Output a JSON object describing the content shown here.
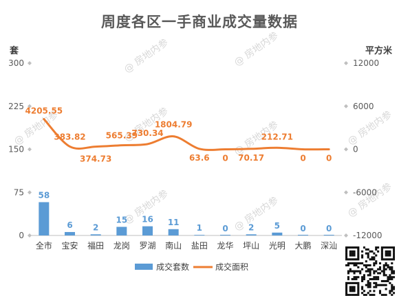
{
  "chart_data": {
    "type": "bar+line",
    "title": "周度各区一手商业成交量数据",
    "left_axis_unit": "套",
    "right_axis_unit": "平方米",
    "categories": [
      "全市",
      "宝安",
      "福田",
      "龙岗",
      "罗湖",
      "南山",
      "盐田",
      "龙华",
      "坪山",
      "光明",
      "大鹏",
      "深汕"
    ],
    "series": [
      {
        "name": "成交套数",
        "type": "bar",
        "axis": "left",
        "color": "#5B9BD5",
        "values": [
          58,
          6,
          2,
          15,
          16,
          11,
          1,
          0,
          2,
          5,
          0,
          0
        ]
      },
      {
        "name": "成交面积",
        "type": "line",
        "axis": "right",
        "color": "#ED7D31",
        "values": [
          4205.55,
          383.82,
          374.73,
          565.39,
          730.34,
          1804.79,
          63.6,
          0,
          70.17,
          212.71,
          0,
          0
        ],
        "labels": [
          "4205.55",
          "383.82",
          "374.73",
          "565.39",
          "730.34",
          "1804.79",
          "63.6",
          "0",
          "70.17",
          "212.71",
          "0",
          "0"
        ]
      }
    ],
    "left_axis": {
      "min": 0,
      "max": 300,
      "ticks": [
        "0",
        "75",
        "150",
        "225",
        "300"
      ]
    },
    "right_axis": {
      "min": -12000,
      "max": 12000,
      "ticks": [
        "-12000",
        "-6000",
        "0",
        "6000",
        "12000"
      ]
    },
    "legend_position": "bottom",
    "grid": false
  },
  "watermark": "@ 房地内参"
}
